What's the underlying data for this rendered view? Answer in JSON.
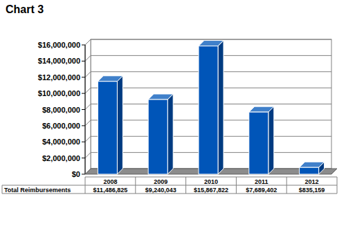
{
  "chart_data": {
    "type": "bar",
    "title": "Chart 3",
    "categories": [
      "2008",
      "2009",
      "2010",
      "2011",
      "2012"
    ],
    "series": [
      {
        "name": "Total Reimbursements",
        "color": "#0055b8",
        "values": [
          11486825,
          9240043,
          15867822,
          7689402,
          835159
        ],
        "value_labels": [
          "$11,486,825",
          "$9,240,043",
          "$15,867,822",
          "$7,689,402",
          "$835,159"
        ]
      }
    ],
    "ylim": [
      0,
      16000000
    ],
    "yticks": [
      {
        "value": 0,
        "label": "$0"
      },
      {
        "value": 2000000,
        "label": "$2,000,000"
      },
      {
        "value": 4000000,
        "label": "$4,000,000"
      },
      {
        "value": 6000000,
        "label": "$6,000,000"
      },
      {
        "value": 8000000,
        "label": "$8,000,000"
      },
      {
        "value": 10000000,
        "label": "$10,000,000"
      },
      {
        "value": 12000000,
        "label": "$12,000,000"
      },
      {
        "value": 14000000,
        "label": "$14,000,000"
      },
      {
        "value": 16000000,
        "label": "$16,000,000"
      }
    ],
    "grid": true,
    "data_labels": true
  }
}
